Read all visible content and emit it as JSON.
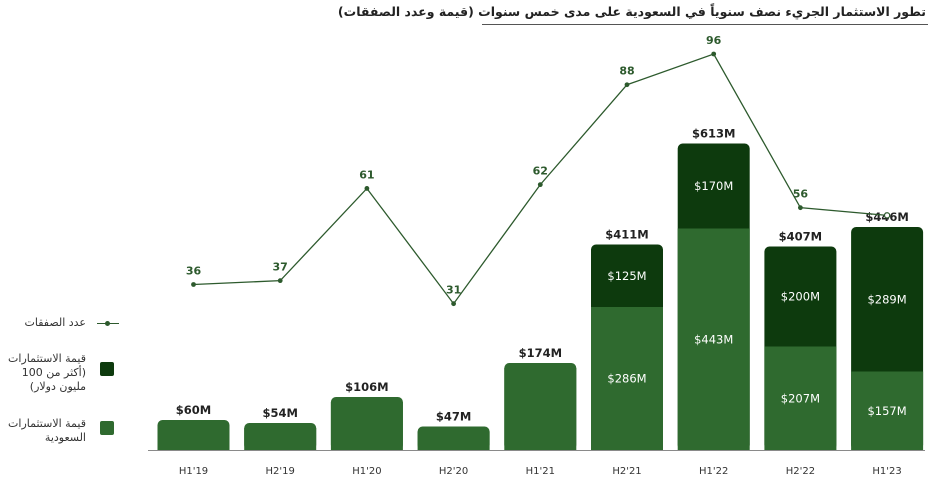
{
  "chart_data": {
    "type": "bar",
    "title": "تطور الاستثمار الجريء نصف سنوياً في السعودية على مدى خمس سنوات (قيمة وعدد الصفقات)",
    "categories": [
      "H1'19",
      "H2'19",
      "H1'20",
      "H2'20",
      "H1'21",
      "H2'21",
      "H1'22",
      "H2'22",
      "H1'23"
    ],
    "series": [
      {
        "name": "قيمة الاستثمارات السعودية",
        "type": "stacked-bar",
        "values": [
          60,
          54,
          106,
          47,
          174,
          286,
          443,
          207,
          157
        ],
        "labels": [
          "",
          "",
          "",
          "",
          "",
          "$286M",
          "$443M",
          "$207M",
          "$157M"
        ]
      },
      {
        "name": "قيمة الاستثمارات (أكثر من 100 مليون دولار)",
        "type": "stacked-bar",
        "values": [
          0,
          0,
          0,
          0,
          0,
          125,
          170,
          200,
          289
        ],
        "labels": [
          "",
          "",
          "",
          "",
          "",
          "$125M",
          "$170M",
          "$200M",
          "$289M"
        ]
      },
      {
        "name": "عدد الصفقات",
        "type": "line",
        "values": [
          36,
          37,
          61,
          31,
          62,
          88,
          96,
          56,
          54
        ]
      }
    ],
    "totals": [
      "$60M",
      "$54M",
      "$106M",
      "$47M",
      "$174M",
      "$411M",
      "$613M",
      "$407M",
      "$446M"
    ],
    "legend": {
      "deals": "عدد الصفقات",
      "large_line1": "قيمة الاستثمارات",
      "large_line2": "(أكثر من 100",
      "large_line3": "مليون دولار)",
      "saudi_line1": "قيمة الاستثمارات",
      "saudi_line2": "السعودية"
    },
    "colors": {
      "saudi": "#2f6a2f",
      "large": "#0d3a0d",
      "line": "#2d5a2d",
      "text": "#222222"
    },
    "ylim_value": [
      0,
      650
    ],
    "ylim_deals": [
      0,
      100
    ]
  }
}
